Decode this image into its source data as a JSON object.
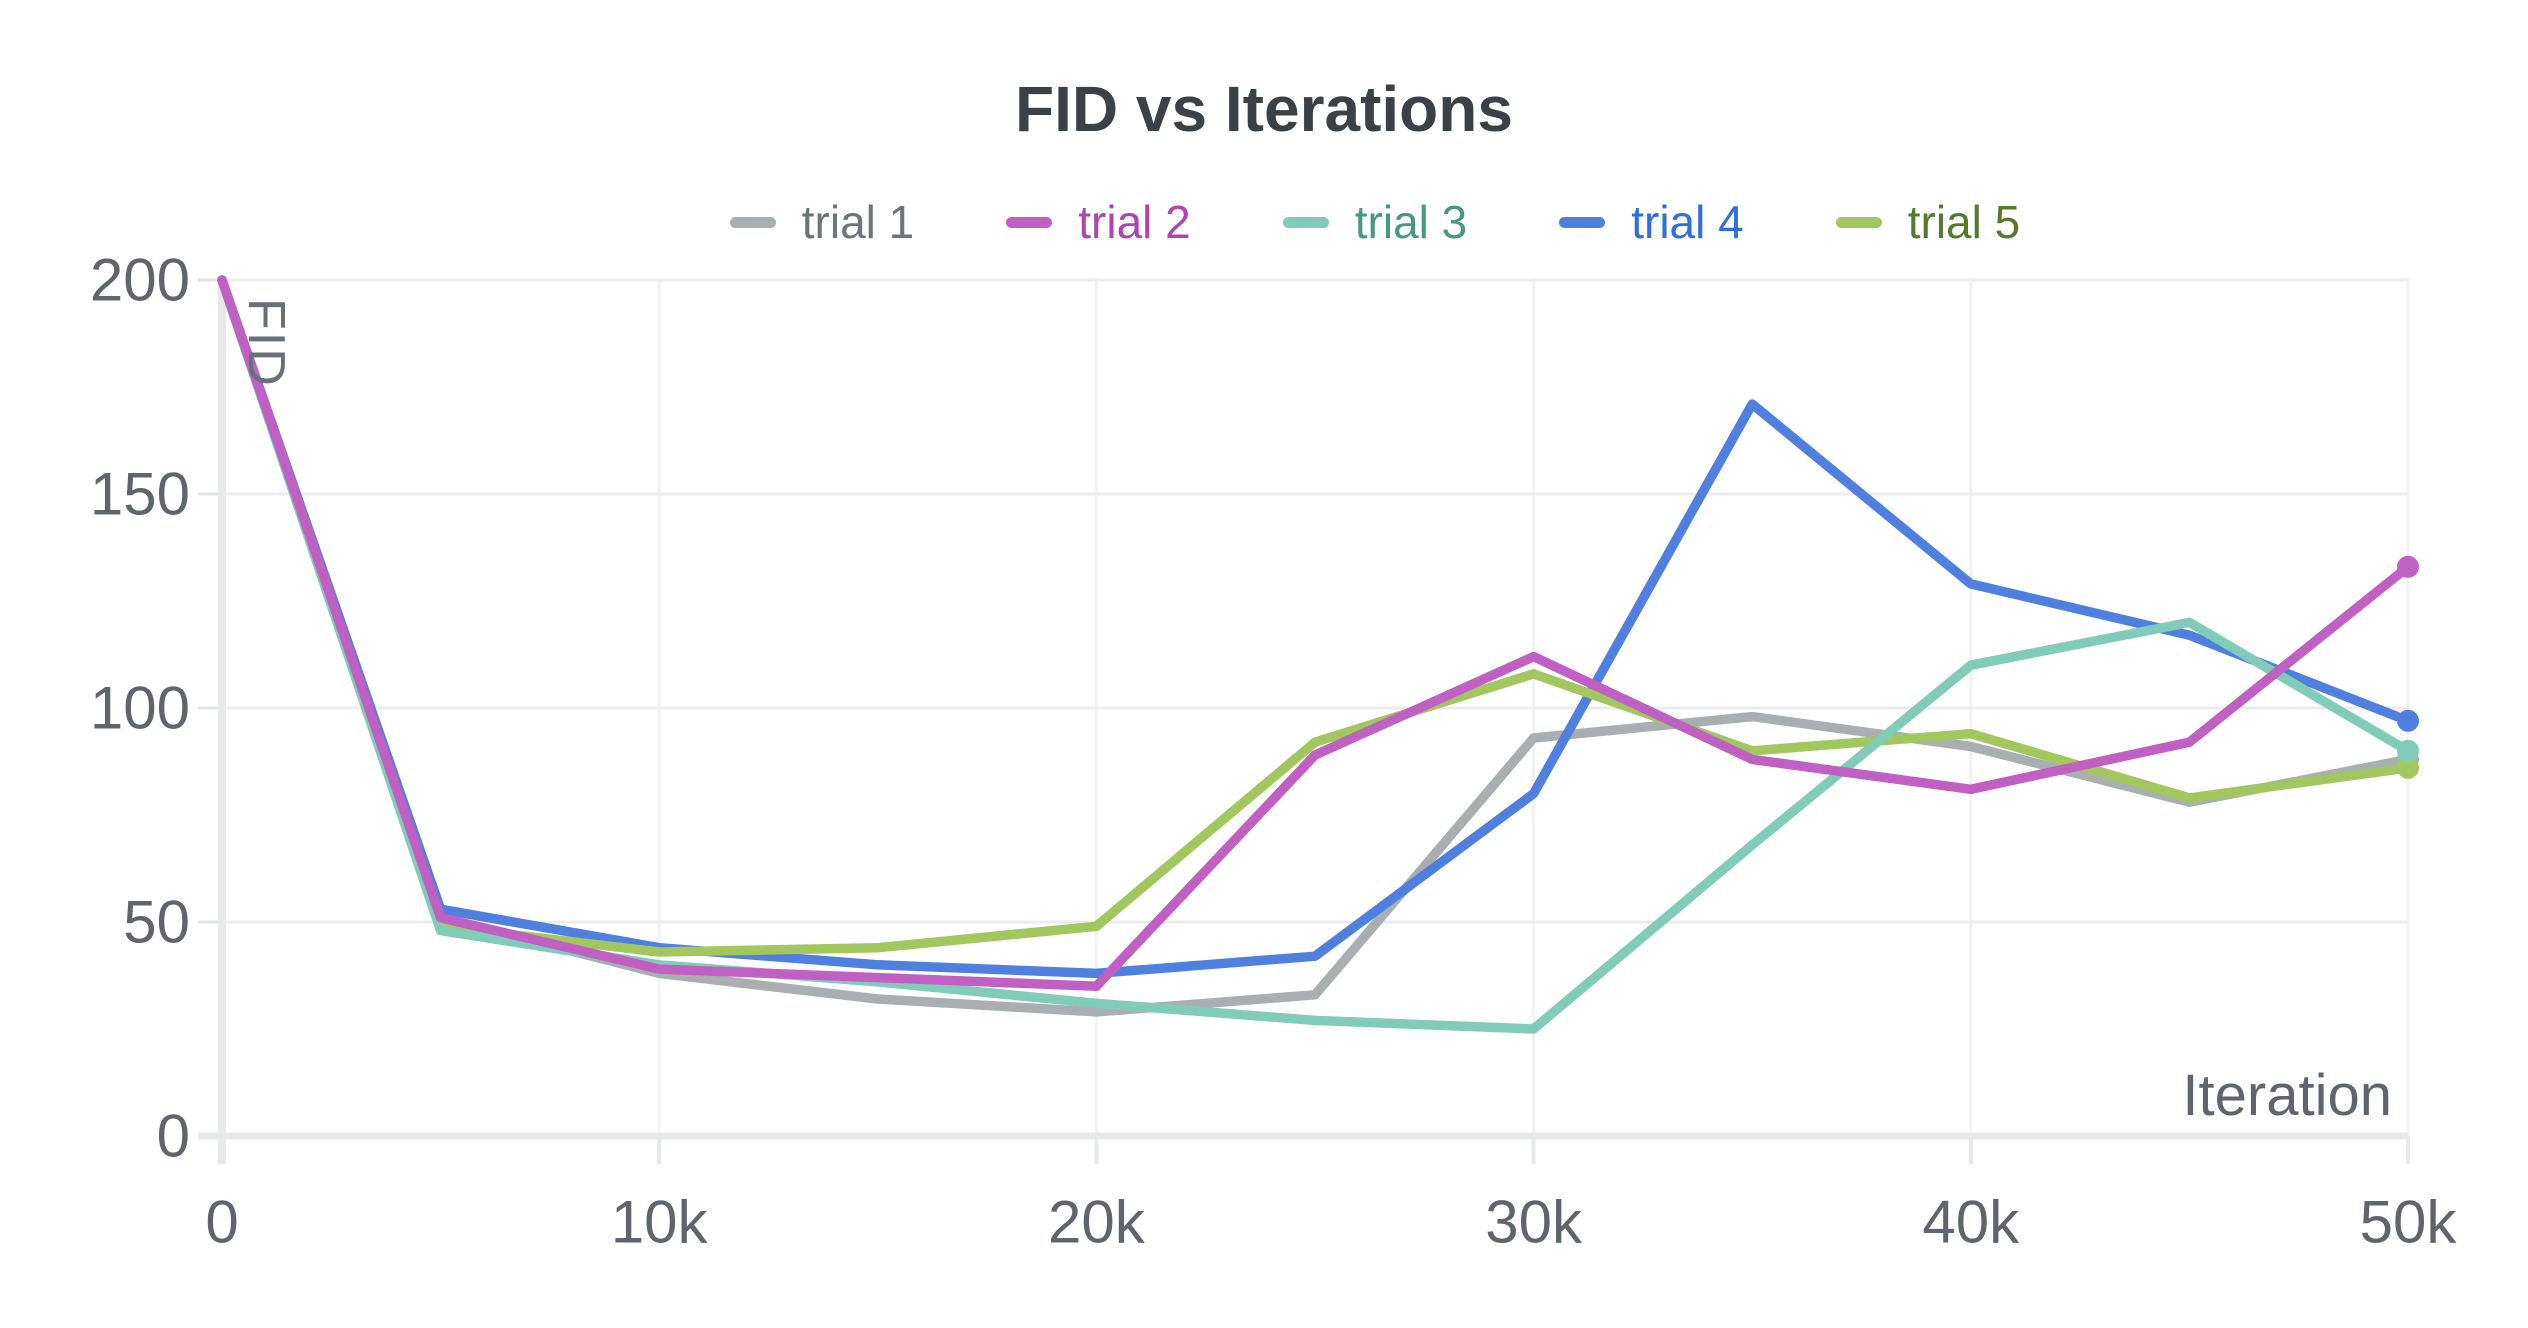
{
  "chart_data": {
    "type": "line",
    "title": "FID vs Iterations",
    "xlabel": "Iteration",
    "ylabel": "FID",
    "xlim": [
      0,
      50000
    ],
    "ylim": [
      0,
      200
    ],
    "grid": true,
    "legend_position": "top-center",
    "x": [
      0,
      5000,
      10000,
      15000,
      20000,
      25000,
      30000,
      35000,
      40000,
      45000,
      50000
    ],
    "x_tick_values": [
      0,
      10000,
      20000,
      30000,
      40000,
      50000
    ],
    "x_tick_labels": [
      "0",
      "10k",
      "20k",
      "30k",
      "40k",
      "50k"
    ],
    "y_tick_values": [
      0,
      50,
      100,
      150,
      200
    ],
    "y_tick_labels": [
      "0",
      "50",
      "100",
      "150",
      "200"
    ],
    "series": [
      {
        "name": "trial 1",
        "color": "#a9aeb1",
        "label_color": "#6b757c",
        "values": [
          200,
          51,
          38,
          32,
          29,
          33,
          93,
          98,
          91,
          78,
          88
        ]
      },
      {
        "name": "trial 2",
        "color": "#c160c3",
        "label_color": "#ae44ae",
        "values": [
          200,
          51,
          39,
          37,
          35,
          89,
          112,
          88,
          81,
          92,
          133
        ]
      },
      {
        "name": "trial 3",
        "color": "#81ccb8",
        "label_color": "#46997f",
        "values": [
          200,
          48,
          40,
          36,
          31,
          27,
          25,
          68,
          110,
          120,
          90
        ]
      },
      {
        "name": "trial 4",
        "color": "#5080df",
        "label_color": "#2e6edd",
        "values": [
          200,
          53,
          44,
          40,
          38,
          42,
          80,
          171,
          129,
          117,
          97
        ]
      },
      {
        "name": "trial 5",
        "color": "#a1c75e",
        "label_color": "#567a2d",
        "values": [
          200,
          49,
          43,
          44,
          49,
          92,
          108,
          90,
          94,
          79,
          86
        ]
      }
    ],
    "draw_order": [
      0,
      3,
      4,
      2,
      1
    ],
    "style": {
      "line_width": 9.5,
      "end_dot_radius": 11,
      "grid_color_h": "#ececef",
      "grid_color_v": "#f2f2f4",
      "axis_color": "#e7e8ea",
      "tick_stub_color": "#e3e4e7"
    }
  }
}
